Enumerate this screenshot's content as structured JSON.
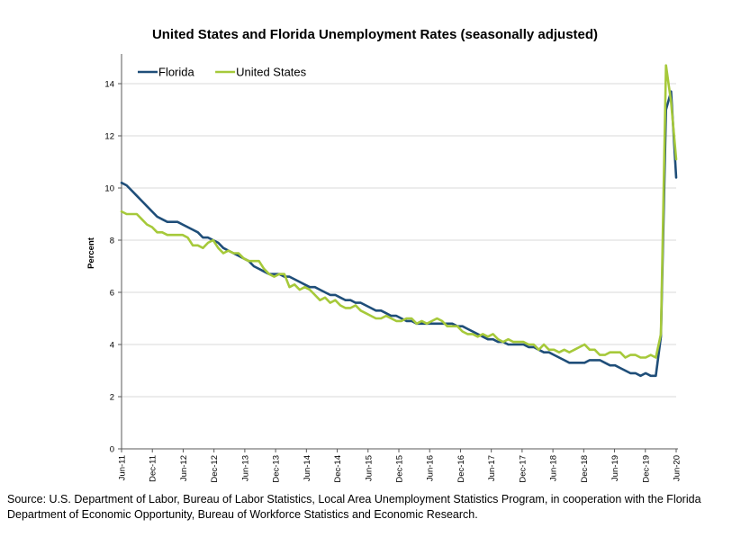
{
  "chart_data": {
    "type": "line",
    "title": "United States and Florida Unemployment Rates (seasonally adjusted)",
    "ylabel": "Percent",
    "xlabel": "",
    "ylim": [
      0,
      15
    ],
    "yticks": [
      0,
      2,
      4,
      6,
      8,
      10,
      12,
      14
    ],
    "xticks": [
      "Jun-11",
      "Dec-11",
      "Jun-12",
      "Dec-12",
      "Jun-13",
      "Dec-13",
      "Jun-14",
      "Dec-14",
      "Jun-15",
      "Dec-15",
      "Jun-16",
      "Dec-16",
      "Jun-17",
      "Dec-17",
      "Jun-18",
      "Dec-18",
      "Jun-19",
      "Dec-19",
      "Jun-20"
    ],
    "x_start": "Jun-11",
    "x_end": "Jun-20",
    "grid": "horizontal",
    "legend_position": "top-left",
    "series": [
      {
        "name": "Florida",
        "color": "#1f4e79",
        "values": [
          10.2,
          10.1,
          9.9,
          9.7,
          9.5,
          9.3,
          9.1,
          8.9,
          8.8,
          8.7,
          8.7,
          8.7,
          8.6,
          8.5,
          8.4,
          8.3,
          8.1,
          8.1,
          8.0,
          7.9,
          7.7,
          7.6,
          7.5,
          7.4,
          7.3,
          7.2,
          7.0,
          6.9,
          6.8,
          6.7,
          6.7,
          6.7,
          6.6,
          6.6,
          6.5,
          6.4,
          6.3,
          6.2,
          6.2,
          6.1,
          6.0,
          5.9,
          5.9,
          5.8,
          5.7,
          5.7,
          5.6,
          5.6,
          5.5,
          5.4,
          5.3,
          5.3,
          5.2,
          5.1,
          5.1,
          5.0,
          4.9,
          4.9,
          4.8,
          4.8,
          4.8,
          4.8,
          4.8,
          4.8,
          4.8,
          4.8,
          4.7,
          4.7,
          4.6,
          4.5,
          4.4,
          4.3,
          4.2,
          4.2,
          4.1,
          4.1,
          4.0,
          4.0,
          4.0,
          4.0,
          3.9,
          3.9,
          3.8,
          3.7,
          3.7,
          3.6,
          3.5,
          3.4,
          3.3,
          3.3,
          3.3,
          3.3,
          3.4,
          3.4,
          3.4,
          3.3,
          3.2,
          3.2,
          3.1,
          3.0,
          2.9,
          2.9,
          2.8,
          2.9,
          2.8,
          2.8,
          4.3,
          13.0,
          13.7,
          10.4
        ]
      },
      {
        "name": "United States",
        "color": "#a6c93a",
        "values": [
          9.1,
          9.0,
          9.0,
          9.0,
          8.8,
          8.6,
          8.5,
          8.3,
          8.3,
          8.2,
          8.2,
          8.2,
          8.2,
          8.1,
          7.8,
          7.8,
          7.7,
          7.9,
          8.0,
          7.7,
          7.5,
          7.6,
          7.5,
          7.5,
          7.3,
          7.2,
          7.2,
          7.2,
          6.9,
          6.7,
          6.6,
          6.7,
          6.7,
          6.2,
          6.3,
          6.1,
          6.2,
          6.1,
          5.9,
          5.7,
          5.8,
          5.6,
          5.7,
          5.5,
          5.4,
          5.4,
          5.5,
          5.3,
          5.2,
          5.1,
          5.0,
          5.0,
          5.1,
          5.0,
          4.9,
          4.9,
          5.0,
          5.0,
          4.8,
          4.9,
          4.8,
          4.9,
          5.0,
          4.9,
          4.7,
          4.7,
          4.7,
          4.5,
          4.4,
          4.4,
          4.3,
          4.4,
          4.3,
          4.4,
          4.2,
          4.1,
          4.2,
          4.1,
          4.1,
          4.1,
          4.0,
          4.0,
          3.8,
          4.0,
          3.8,
          3.8,
          3.7,
          3.8,
          3.7,
          3.8,
          3.9,
          4.0,
          3.8,
          3.8,
          3.6,
          3.6,
          3.7,
          3.7,
          3.7,
          3.5,
          3.6,
          3.6,
          3.5,
          3.5,
          3.6,
          3.5,
          4.4,
          14.7,
          13.3,
          11.1
        ]
      }
    ]
  },
  "source_note": "Source:  U.S. Department of Labor, Bureau of Labor Statistics, Local Area Unemployment Statistics Program, in cooperation with the Florida Department of Economic Opportunity, Bureau of Workforce Statistics and Economic Research."
}
